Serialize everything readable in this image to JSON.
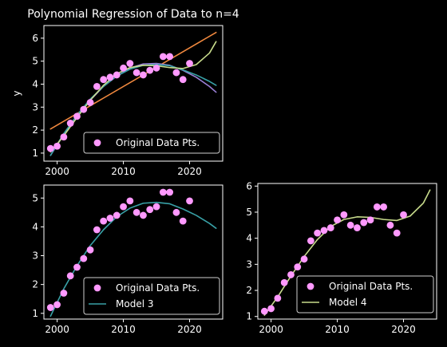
{
  "chart_data": [
    {
      "type": "scatter",
      "title": "Polynomial Regression of Data to n=4",
      "xlabel": "",
      "ylabel": "y",
      "xlim": [
        1998,
        2025
      ],
      "ylim": [
        0.65,
        6.55
      ],
      "xticks": [
        2000,
        2010,
        2020
      ],
      "yticks": [
        1,
        2,
        3,
        4,
        5,
        6
      ],
      "grid": false,
      "legend_position": "bottom-right",
      "scatter": {
        "name": "Original Data Pts.",
        "color": "#ff99ff",
        "x": [
          1999,
          2000,
          2001,
          2002,
          2003,
          2004,
          2005,
          2006,
          2007,
          2008,
          2009,
          2010,
          2011,
          2012,
          2013,
          2014,
          2015,
          2016,
          2017,
          2018,
          2019,
          2020
        ],
        "y": [
          1.2,
          1.3,
          1.7,
          2.3,
          2.6,
          2.9,
          3.2,
          3.9,
          4.2,
          4.3,
          4.4,
          4.7,
          4.9,
          4.5,
          4.4,
          4.6,
          4.7,
          5.2,
          5.2,
          4.5,
          4.2,
          4.9
        ]
      },
      "series": [
        {
          "label": "",
          "color": "#f0883e",
          "x": [
            1999,
            2024
          ],
          "y": [
            2.05,
            6.25
          ]
        },
        {
          "label": "",
          "color": "#9a7fd6",
          "x": [
            1999,
            2001,
            2003,
            2005,
            2007,
            2009,
            2011,
            2013,
            2015,
            2017,
            2019,
            2021,
            2023,
            2024
          ],
          "y": [
            0.9,
            1.8,
            2.6,
            3.3,
            3.9,
            4.35,
            4.7,
            4.88,
            4.9,
            4.82,
            4.6,
            4.3,
            3.9,
            3.65
          ]
        },
        {
          "label": "",
          "color": "#38a0a6",
          "x": [
            1999,
            2001,
            2003,
            2005,
            2007,
            2009,
            2011,
            2013,
            2015,
            2017,
            2019,
            2021,
            2023,
            2024
          ],
          "y": [
            0.9,
            1.85,
            2.65,
            3.35,
            3.9,
            4.35,
            4.65,
            4.82,
            4.85,
            4.8,
            4.62,
            4.4,
            4.12,
            3.95
          ]
        },
        {
          "label": "",
          "color": "#c8dc8c",
          "x": [
            1999,
            2001,
            2003,
            2005,
            2007,
            2009,
            2011,
            2013,
            2015,
            2017,
            2019,
            2021,
            2023,
            2024
          ],
          "y": [
            1.05,
            1.75,
            2.55,
            3.3,
            3.95,
            4.45,
            4.72,
            4.82,
            4.8,
            4.72,
            4.68,
            4.85,
            5.35,
            5.85
          ]
        }
      ]
    },
    {
      "type": "scatter",
      "title": "",
      "xlabel": "",
      "ylabel": "",
      "xlim": [
        1998,
        2025
      ],
      "ylim": [
        0.8,
        5.45
      ],
      "xticks": [
        2000,
        2010,
        2020
      ],
      "yticks": [
        1,
        2,
        3,
        4,
        5
      ],
      "grid": false,
      "legend_position": "bottom-right",
      "scatter": {
        "name": "Original Data Pts.",
        "color": "#ff99ff",
        "x": [
          1999,
          2000,
          2001,
          2002,
          2003,
          2004,
          2005,
          2006,
          2007,
          2008,
          2009,
          2010,
          2011,
          2012,
          2013,
          2014,
          2015,
          2016,
          2017,
          2018,
          2019,
          2020
        ],
        "y": [
          1.2,
          1.3,
          1.7,
          2.3,
          2.6,
          2.9,
          3.2,
          3.9,
          4.2,
          4.3,
          4.4,
          4.7,
          4.9,
          4.5,
          4.4,
          4.6,
          4.7,
          5.2,
          5.2,
          4.5,
          4.2,
          4.9
        ]
      },
      "series": [
        {
          "label": "Model 3",
          "color": "#38a0a6",
          "x": [
            1999,
            2001,
            2003,
            2005,
            2007,
            2009,
            2011,
            2013,
            2015,
            2017,
            2019,
            2021,
            2023,
            2024
          ],
          "y": [
            0.9,
            1.85,
            2.65,
            3.35,
            3.9,
            4.35,
            4.65,
            4.82,
            4.85,
            4.8,
            4.62,
            4.4,
            4.12,
            3.95
          ]
        }
      ]
    },
    {
      "type": "scatter",
      "title": "",
      "xlabel": "",
      "ylabel": "",
      "xlim": [
        1998,
        2025
      ],
      "ylim": [
        0.9,
        6.1
      ],
      "xticks": [
        2000,
        2010,
        2020
      ],
      "yticks": [
        1,
        2,
        3,
        4,
        5,
        6
      ],
      "grid": false,
      "legend_position": "bottom-right",
      "scatter": {
        "name": "Original Data Pts.",
        "color": "#ff99ff",
        "x": [
          1999,
          2000,
          2001,
          2002,
          2003,
          2004,
          2005,
          2006,
          2007,
          2008,
          2009,
          2010,
          2011,
          2012,
          2013,
          2014,
          2015,
          2016,
          2017,
          2018,
          2019,
          2020
        ],
        "y": [
          1.2,
          1.3,
          1.7,
          2.3,
          2.6,
          2.9,
          3.2,
          3.9,
          4.2,
          4.3,
          4.4,
          4.7,
          4.9,
          4.5,
          4.4,
          4.6,
          4.7,
          5.2,
          5.2,
          4.5,
          4.2,
          4.9
        ]
      },
      "series": [
        {
          "label": "Model 4",
          "color": "#c8dc8c",
          "x": [
            1999,
            2001,
            2003,
            2005,
            2007,
            2009,
            2011,
            2013,
            2015,
            2017,
            2019,
            2021,
            2023,
            2024
          ],
          "y": [
            1.05,
            1.75,
            2.55,
            3.3,
            3.95,
            4.45,
            4.72,
            4.82,
            4.8,
            4.72,
            4.68,
            4.85,
            5.35,
            5.85
          ]
        }
      ]
    }
  ]
}
